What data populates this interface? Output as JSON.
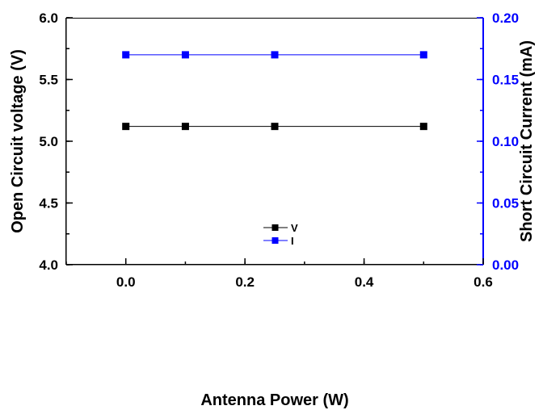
{
  "chart_data": {
    "type": "line",
    "xlabel": "Antenna Power (W)",
    "ylabel": "Open Circuit voltage (V)",
    "y2label": "Short Circuit Current (mA)",
    "xlim": [
      -0.1,
      0.6
    ],
    "ylim": [
      4.0,
      6.0
    ],
    "y2lim": [
      0.0,
      0.2
    ],
    "x_ticks": [
      "0.0",
      "0.2",
      "0.4",
      "0.6"
    ],
    "y_ticks": [
      "4.0",
      "4.5",
      "5.0",
      "5.5",
      "6.0"
    ],
    "y2_ticks": [
      "0.00",
      "0.05",
      "0.10",
      "0.15",
      "0.20"
    ],
    "x": [
      0.0,
      0.1,
      0.25,
      0.5
    ],
    "series": [
      {
        "name": "V",
        "axis": "left",
        "values": [
          5.12,
          5.12,
          5.12,
          5.12
        ],
        "color": "#000000"
      },
      {
        "name": "I",
        "axis": "right",
        "values": [
          0.17,
          0.17,
          0.17,
          0.17
        ],
        "color": "#0000ff"
      }
    ],
    "right_axis_color": "#0000ff",
    "grid": false,
    "legend_position": "center"
  }
}
